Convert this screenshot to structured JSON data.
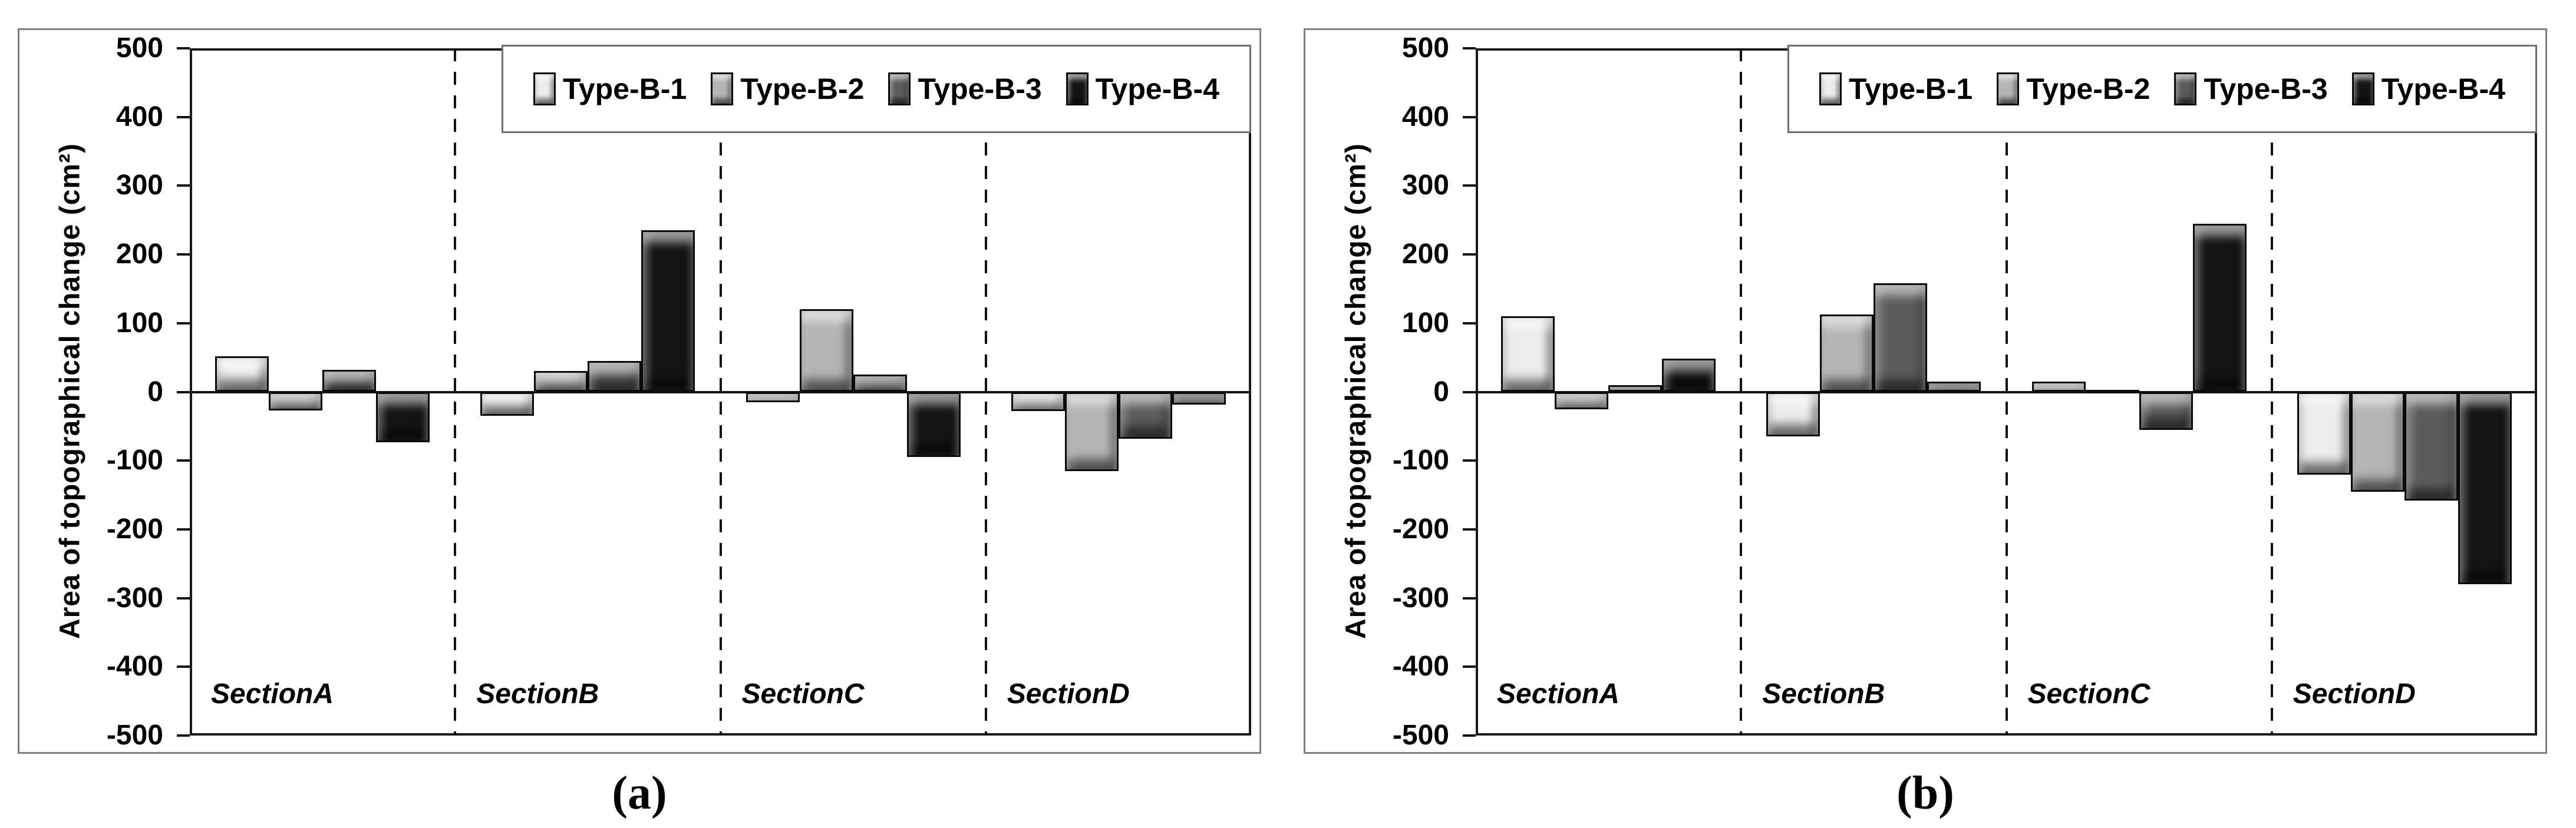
{
  "figure": {
    "background": "#ffffff",
    "panel_border_color": "#7f7f7f",
    "axis_color": "#1a1a1a",
    "series_colors": [
      "#ececec",
      "#b4b4b4",
      "#5c5c5c",
      "#141414"
    ]
  },
  "chart_data": [
    {
      "id": "a",
      "type": "bar",
      "caption": "(a)",
      "title": "",
      "xlabel": "",
      "ylabel": "Area of topographical change (cm²)",
      "ylim": [
        -500,
        500
      ],
      "ytick_step": 100,
      "ytick_labels": [
        "500",
        "400",
        "300",
        "200",
        "100",
        "0",
        "-100",
        "-200",
        "-300",
        "-400",
        "-500"
      ],
      "grid": false,
      "legend_position": "top-right",
      "categories": [
        "SectionA",
        "SectionB",
        "SectionC",
        "SectionD"
      ],
      "series": [
        {
          "name": "Type-B-1",
          "color": "#ececec",
          "values": [
            52,
            -35,
            -15,
            -28
          ]
        },
        {
          "name": "Type-B-2",
          "color": "#b4b4b4",
          "values": [
            -27,
            30,
            120,
            -115
          ]
        },
        {
          "name": "Type-B-3",
          "color": "#5c5c5c",
          "values": [
            32,
            45,
            25,
            -68
          ]
        },
        {
          "name": "Type-B-4",
          "color": "#141414",
          "values": [
            -73,
            235,
            -95,
            -18
          ]
        }
      ]
    },
    {
      "id": "b",
      "type": "bar",
      "caption": "(b)",
      "title": "",
      "xlabel": "",
      "ylabel": "Area of topographical change (cm²)",
      "ylim": [
        -500,
        500
      ],
      "ytick_step": 100,
      "ytick_labels": [
        "500",
        "400",
        "300",
        "200",
        "100",
        "0",
        "-100",
        "-200",
        "-300",
        "-400",
        "-500"
      ],
      "grid": false,
      "legend_position": "top-right",
      "categories": [
        "SectionA",
        "SectionB",
        "SectionC",
        "SectionD"
      ],
      "series": [
        {
          "name": "Type-B-1",
          "color": "#ececec",
          "values": [
            110,
            -65,
            15,
            -120
          ]
        },
        {
          "name": "Type-B-2",
          "color": "#b4b4b4",
          "values": [
            -25,
            113,
            3,
            -145
          ]
        },
        {
          "name": "Type-B-3",
          "color": "#5c5c5c",
          "values": [
            10,
            158,
            -55,
            -158
          ]
        },
        {
          "name": "Type-B-4",
          "color": "#141414",
          "values": [
            48,
            15,
            245,
            -280
          ]
        }
      ]
    }
  ]
}
